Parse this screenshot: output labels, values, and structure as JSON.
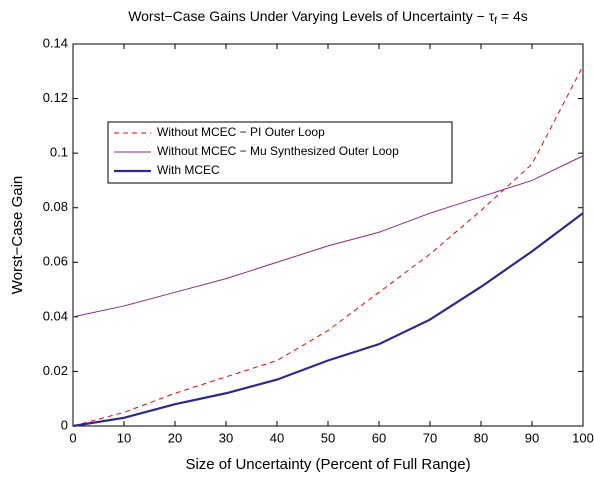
{
  "chart_data": {
    "type": "line",
    "title": [
      "Worst−Case Gains Under Varying Levels of Uncertainty − τ",
      "f",
      " = 4s"
    ],
    "xlabel": "Size of Uncertainty (Percent of Full Range)",
    "ylabel": "Worst−Case Gain",
    "x": [
      0,
      10,
      20,
      30,
      40,
      50,
      60,
      70,
      80,
      90,
      100
    ],
    "series": [
      {
        "name": "Without MCEC − PI Outer Loop",
        "color": "#ff0000",
        "dash": true,
        "values": [
          0,
          0.005,
          0.012,
          0.018,
          0.024,
          0.035,
          0.049,
          0.063,
          0.079,
          0.096,
          0.132
        ]
      },
      {
        "name": "Without MCEC − Mu Synthesized Outer Loop",
        "color": "#8b2a8b",
        "dash": false,
        "values": [
          0.04,
          0.044,
          0.049,
          0.054,
          0.06,
          0.066,
          0.071,
          0.078,
          0.084,
          0.09,
          0.099
        ]
      },
      {
        "name": "With MCEC",
        "color": "#2b2a8c",
        "dash": false,
        "bold": true,
        "values": [
          0,
          0.003,
          0.008,
          0.012,
          0.017,
          0.024,
          0.03,
          0.039,
          0.051,
          0.064,
          0.078
        ]
      }
    ],
    "xlim": [
      0,
      100
    ],
    "xticks": [
      0,
      10,
      20,
      30,
      40,
      50,
      60,
      70,
      80,
      90,
      100
    ],
    "ylim": [
      0,
      0.14
    ],
    "yticks": [
      0,
      0.02,
      0.04,
      0.06,
      0.08,
      0.1,
      0.12,
      0.14
    ],
    "grid": false
  }
}
